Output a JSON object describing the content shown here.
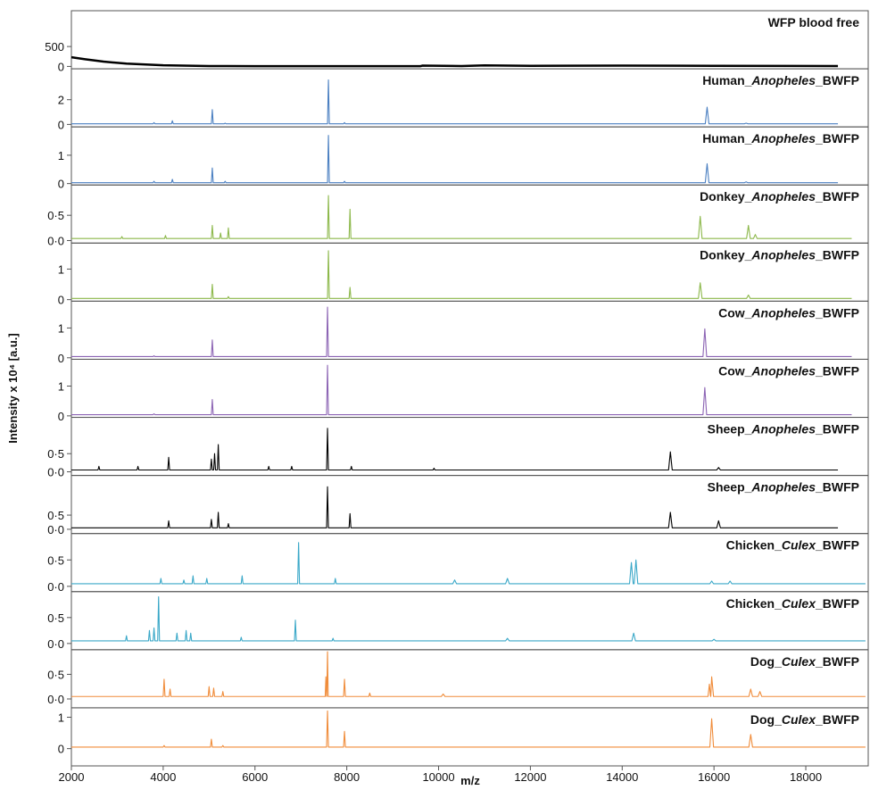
{
  "chart_data": [
    {
      "type": "line",
      "title": "WFP blood free",
      "color": "#000000",
      "xlim": [
        2000,
        19360
      ],
      "ylim": [
        -60,
        1400
      ],
      "yticks": [
        0,
        500
      ],
      "x": [
        2000,
        2300,
        2700,
        3200,
        4000,
        5000,
        6000,
        9600,
        9650,
        10500,
        11000,
        12000,
        14000,
        16000,
        18700
      ],
      "values": [
        230,
        180,
        120,
        70,
        30,
        10,
        5,
        5,
        20,
        10,
        25,
        15,
        20,
        15,
        10
      ]
    },
    {
      "type": "line",
      "title": "Human_Anopheles_BWFP",
      "color": "#4a7fc1",
      "xlim": [
        2000,
        19360
      ],
      "ylim": [
        -0.2,
        4.5
      ],
      "yticks": [
        0,
        2
      ],
      "x": [
        2000,
        3780,
        3800,
        3820,
        4180,
        4200,
        4220,
        5050,
        5070,
        5090,
        5330,
        5350,
        5370,
        7580,
        7600,
        7620,
        7930,
        7950,
        7970,
        15810,
        15850,
        15890,
        16660,
        16700,
        16740,
        18700
      ],
      "values": [
        0.05,
        0.05,
        0.15,
        0.05,
        0.05,
        0.3,
        0.05,
        0.05,
        1.2,
        0.05,
        0.05,
        0.1,
        0.05,
        0.05,
        3.6,
        0.05,
        0.05,
        0.15,
        0.05,
        0.05,
        1.4,
        0.05,
        0.05,
        0.1,
        0.05,
        0.05
      ]
    },
    {
      "type": "line",
      "title": "Human_Anopheles_BWFP",
      "color": "#4a7fc1",
      "xlim": [
        2000,
        19360
      ],
      "ylim": [
        -0.05,
        2.0
      ],
      "yticks": [
        0,
        1
      ],
      "x": [
        2000,
        3780,
        3800,
        3820,
        4180,
        4200,
        4220,
        5050,
        5070,
        5090,
        5330,
        5350,
        5370,
        7580,
        7600,
        7620,
        7930,
        7950,
        7970,
        15810,
        15850,
        15890,
        16660,
        16700,
        16740,
        18700
      ],
      "values": [
        0.03,
        0.03,
        0.08,
        0.03,
        0.03,
        0.15,
        0.03,
        0.03,
        0.55,
        0.03,
        0.03,
        0.08,
        0.03,
        0.03,
        1.7,
        0.03,
        0.03,
        0.08,
        0.03,
        0.03,
        0.7,
        0.03,
        0.03,
        0.06,
        0.03,
        0.03
      ]
    },
    {
      "type": "line",
      "title": "Donkey_Anopheles_BWFP",
      "color": "#8cb84a",
      "xlim": [
        2000,
        19360
      ],
      "ylim": [
        -0.05,
        1.1
      ],
      "yticks": [
        {
          "value": 0,
          "label": "0·0"
        },
        {
          "value": 0.5,
          "label": "0·5"
        }
      ],
      "x": [
        2000,
        3080,
        3100,
        3120,
        4030,
        4050,
        4070,
        5050,
        5070,
        5090,
        5230,
        5250,
        5270,
        5400,
        5420,
        5440,
        7580,
        7600,
        7620,
        8050,
        8070,
        8090,
        15660,
        15700,
        15740,
        16710,
        16750,
        16790,
        16860,
        16900,
        16940,
        19000
      ],
      "values": [
        0.04,
        0.04,
        0.08,
        0.04,
        0.04,
        0.1,
        0.04,
        0.04,
        0.3,
        0.04,
        0.04,
        0.15,
        0.04,
        0.04,
        0.25,
        0.04,
        0.04,
        0.89,
        0.04,
        0.04,
        0.62,
        0.04,
        0.04,
        0.48,
        0.04,
        0.04,
        0.3,
        0.04,
        0.04,
        0.12,
        0.04,
        0.04
      ]
    },
    {
      "type": "line",
      "title": "Donkey_Anopheles_BWFP",
      "color": "#8cb84a",
      "xlim": [
        2000,
        19360
      ],
      "ylim": [
        -0.05,
        1.85
      ],
      "yticks": [
        0,
        1
      ],
      "x": [
        2000,
        5050,
        5070,
        5090,
        5400,
        5420,
        5440,
        7580,
        7600,
        7620,
        8050,
        8070,
        8090,
        15660,
        15700,
        15740,
        16710,
        16750,
        16790,
        19000
      ],
      "values": [
        0.04,
        0.04,
        0.5,
        0.04,
        0.04,
        0.1,
        0.04,
        0.04,
        1.6,
        0.04,
        0.04,
        0.4,
        0.04,
        0.04,
        0.55,
        0.04,
        0.04,
        0.15,
        0.04,
        0.04
      ]
    },
    {
      "type": "line",
      "title": "Cow_Anopheles_BWFP",
      "color": "#8c64b4",
      "xlim": [
        2000,
        19360
      ],
      "ylim": [
        -0.05,
        1.9
      ],
      "yticks": [
        0,
        1
      ],
      "x": [
        2000,
        3780,
        3800,
        3820,
        5050,
        5070,
        5090,
        7560,
        7580,
        7600,
        15760,
        15800,
        15840,
        19000
      ],
      "values": [
        0.04,
        0.04,
        0.07,
        0.04,
        0.04,
        0.6,
        0.04,
        0.04,
        1.7,
        0.04,
        0.04,
        0.97,
        0.04,
        0.04
      ]
    },
    {
      "type": "line",
      "title": "Cow_Anopheles_BWFP",
      "color": "#8c64b4",
      "xlim": [
        2000,
        19360
      ],
      "ylim": [
        -0.05,
        1.9
      ],
      "yticks": [
        0,
        1
      ],
      "x": [
        2000,
        3780,
        3800,
        3820,
        5050,
        5070,
        5090,
        7560,
        7580,
        7600,
        15760,
        15800,
        15840,
        19000
      ],
      "values": [
        0.04,
        0.04,
        0.07,
        0.04,
        0.04,
        0.55,
        0.04,
        0.04,
        1.7,
        0.04,
        0.04,
        0.95,
        0.04,
        0.04
      ]
    },
    {
      "type": "line",
      "title": "Sheep_Anopheles_BWFP",
      "color": "#000000",
      "xlim": [
        2000,
        19360
      ],
      "ylim": [
        -0.1,
        1.5
      ],
      "yticks": [
        {
          "value": 0,
          "label": "0·0"
        },
        {
          "value": 0.5,
          "label": "0·5"
        }
      ],
      "x": [
        2000,
        2580,
        2600,
        2620,
        3430,
        3450,
        3470,
        4100,
        4120,
        4140,
        5030,
        5050,
        5070,
        5100,
        5120,
        5140,
        5180,
        5200,
        5220,
        6280,
        6300,
        6320,
        6780,
        6800,
        6820,
        7560,
        7580,
        7600,
        8080,
        8100,
        8120,
        9880,
        9900,
        9920,
        15010,
        15050,
        15090,
        16060,
        16100,
        16140,
        18700
      ],
      "values": [
        0.05,
        0.05,
        0.15,
        0.05,
        0.05,
        0.15,
        0.05,
        0.05,
        0.4,
        0.05,
        0.05,
        0.35,
        0.05,
        0.05,
        0.5,
        0.05,
        0.05,
        0.75,
        0.05,
        0.05,
        0.15,
        0.05,
        0.05,
        0.15,
        0.05,
        0.05,
        1.2,
        0.05,
        0.05,
        0.15,
        0.05,
        0.05,
        0.1,
        0.05,
        0.05,
        0.55,
        0.05,
        0.05,
        0.12,
        0.05,
        0.05
      ]
    },
    {
      "type": "line",
      "title": "Sheep_Anopheles_BWFP",
      "color": "#000000",
      "xlim": [
        2000,
        19360
      ],
      "ylim": [
        -0.15,
        1.9
      ],
      "yticks": [
        {
          "value": 0,
          "label": "0·0"
        },
        {
          "value": 0.5,
          "label": "0·5"
        }
      ],
      "x": [
        2000,
        4100,
        4120,
        4140,
        5030,
        5050,
        5070,
        5180,
        5200,
        5220,
        5400,
        5420,
        5440,
        7560,
        7580,
        7600,
        8050,
        8070,
        8090,
        15010,
        15050,
        15090,
        16060,
        16100,
        16140,
        18700
      ],
      "values": [
        0.05,
        0.05,
        0.3,
        0.05,
        0.05,
        0.35,
        0.05,
        0.05,
        0.6,
        0.05,
        0.05,
        0.2,
        0.05,
        0.05,
        1.5,
        0.05,
        0.05,
        0.55,
        0.05,
        0.05,
        0.6,
        0.05,
        0.05,
        0.3,
        0.05,
        0.05
      ]
    },
    {
      "type": "line",
      "title": "Chicken_Culex_BWFP",
      "color": "#3aa8c8",
      "xlim": [
        2000,
        19360
      ],
      "ylim": [
        -0.1,
        1.0
      ],
      "yticks": [
        {
          "value": 0,
          "label": "0·0"
        },
        {
          "value": 0.5,
          "label": "0·5"
        }
      ],
      "x": [
        2000,
        3930,
        3950,
        3970,
        4430,
        4450,
        4470,
        4630,
        4650,
        4670,
        4930,
        4950,
        4970,
        5700,
        5720,
        5740,
        6930,
        6950,
        6970,
        7730,
        7750,
        7770,
        10310,
        10350,
        10390,
        11460,
        11500,
        11540,
        14160,
        14200,
        14240,
        14260,
        14300,
        14340,
        15910,
        15950,
        15990,
        16310,
        16350,
        16390,
        19300
      ],
      "values": [
        0.05,
        0.05,
        0.15,
        0.05,
        0.05,
        0.12,
        0.05,
        0.05,
        0.2,
        0.05,
        0.05,
        0.15,
        0.05,
        0.05,
        0.2,
        0.05,
        0.05,
        0.83,
        0.05,
        0.05,
        0.15,
        0.05,
        0.05,
        0.12,
        0.05,
        0.05,
        0.15,
        0.05,
        0.05,
        0.45,
        0.05,
        0.05,
        0.5,
        0.05,
        0.05,
        0.1,
        0.05,
        0.05,
        0.1,
        0.05,
        0.05
      ]
    },
    {
      "type": "line",
      "title": "Chicken_Culex_BWFP",
      "color": "#3aa8c8",
      "xlim": [
        2000,
        19360
      ],
      "ylim": [
        -0.12,
        1.0
      ],
      "yticks": [
        {
          "value": 0,
          "label": "0·0"
        },
        {
          "value": 0.5,
          "label": "0·5"
        }
      ],
      "x": [
        2000,
        3180,
        3200,
        3220,
        3680,
        3700,
        3720,
        3780,
        3800,
        3820,
        3880,
        3900,
        3920,
        4280,
        4300,
        4320,
        4480,
        4500,
        4520,
        4580,
        4600,
        4620,
        5680,
        5700,
        5720,
        6860,
        6880,
        6900,
        7680,
        7700,
        7720,
        11460,
        11500,
        11540,
        14210,
        14250,
        14290,
        15960,
        16000,
        16040,
        19300
      ],
      "values": [
        0.05,
        0.05,
        0.15,
        0.05,
        0.05,
        0.25,
        0.05,
        0.05,
        0.3,
        0.05,
        0.05,
        0.9,
        0.05,
        0.05,
        0.2,
        0.05,
        0.05,
        0.25,
        0.05,
        0.05,
        0.2,
        0.05,
        0.05,
        0.12,
        0.05,
        0.05,
        0.45,
        0.05,
        0.05,
        0.1,
        0.05,
        0.05,
        0.1,
        0.05,
        0.05,
        0.2,
        0.05,
        0.05,
        0.08,
        0.05,
        0.05
      ]
    },
    {
      "type": "line",
      "title": "Dog_Culex_BWFP",
      "color": "#f08c3a",
      "xlim": [
        2000,
        19360
      ],
      "ylim": [
        -0.18,
        1.0
      ],
      "yticks": [
        {
          "value": 0,
          "label": "0·0"
        },
        {
          "value": 0.5,
          "label": "0·5"
        }
      ],
      "x": [
        2000,
        4000,
        4020,
        4040,
        4130,
        4150,
        4170,
        4980,
        5000,
        5020,
        5080,
        5100,
        5120,
        5280,
        5300,
        5320,
        7530,
        7545,
        7560,
        7565,
        7580,
        7595,
        7930,
        7950,
        7970,
        8480,
        8500,
        8520,
        10060,
        10100,
        10140,
        15870,
        15900,
        15925,
        15930,
        15950,
        15990,
        16760,
        16800,
        16840,
        16960,
        17000,
        17040,
        19300
      ],
      "values": [
        0.05,
        0.05,
        0.4,
        0.05,
        0.05,
        0.2,
        0.05,
        0.05,
        0.25,
        0.05,
        0.05,
        0.22,
        0.05,
        0.05,
        0.15,
        0.05,
        0.05,
        0.45,
        0.05,
        0.05,
        0.96,
        0.05,
        0.05,
        0.4,
        0.05,
        0.05,
        0.12,
        0.05,
        0.05,
        0.1,
        0.05,
        0.05,
        0.3,
        0.05,
        0.05,
        0.45,
        0.05,
        0.05,
        0.2,
        0.05,
        0.05,
        0.15,
        0.05,
        0.05
      ]
    },
    {
      "type": "line",
      "title": "Dog_Culex_BWFP",
      "color": "#f08c3a",
      "xlim": [
        2000,
        19360
      ],
      "ylim": [
        -0.55,
        1.3
      ],
      "yticks": [
        0,
        1
      ],
      "xticks": [
        2000,
        4000,
        6000,
        8000,
        10000,
        12000,
        14000,
        16000,
        18000
      ],
      "xlabel": "m/z",
      "ylabel": "Intensity x 10⁴ [a.u.]",
      "x": [
        2000,
        4000,
        4020,
        4040,
        5030,
        5050,
        5070,
        5280,
        5300,
        5320,
        7560,
        7580,
        7600,
        7930,
        7950,
        7970,
        15910,
        15950,
        15990,
        16760,
        16800,
        16840,
        19300
      ],
      "values": [
        0.05,
        0.05,
        0.1,
        0.05,
        0.05,
        0.3,
        0.05,
        0.05,
        0.1,
        0.05,
        0.05,
        1.2,
        0.05,
        0.05,
        0.55,
        0.05,
        0.05,
        0.95,
        0.05,
        0.05,
        0.45,
        0.05,
        0.05
      ]
    }
  ]
}
